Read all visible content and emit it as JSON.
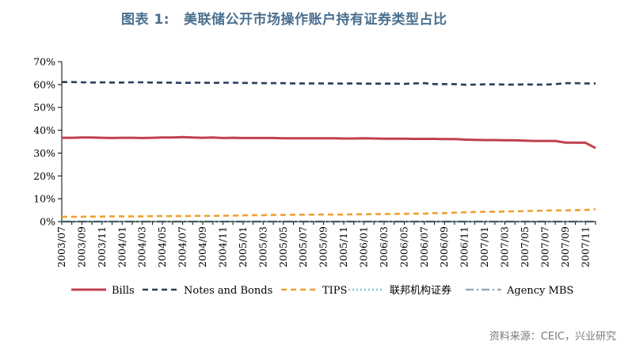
{
  "header": {
    "title_prefix": "图表 1:",
    "title_text": "美联储公开市场操作账户持有证券类型占比"
  },
  "footer": {
    "source": "资料来源：CEIC，兴业研究"
  },
  "chart_data": {
    "type": "line",
    "x": [
      "2003/07",
      "2003/08",
      "2003/09",
      "2003/10",
      "2003/11",
      "2003/12",
      "2004/01",
      "2004/02",
      "2004/03",
      "2004/04",
      "2004/05",
      "2004/06",
      "2004/07",
      "2004/08",
      "2004/09",
      "2004/10",
      "2004/11",
      "2004/12",
      "2005/01",
      "2005/02",
      "2005/03",
      "2005/04",
      "2005/05",
      "2005/06",
      "2005/07",
      "2005/08",
      "2005/09",
      "2005/10",
      "2005/11",
      "2005/12",
      "2006/01",
      "2006/02",
      "2006/03",
      "2006/04",
      "2006/05",
      "2006/06",
      "2006/07",
      "2006/08",
      "2006/09",
      "2006/10",
      "2006/11",
      "2006/12",
      "2007/01",
      "2007/02",
      "2007/03",
      "2007/04",
      "2007/05",
      "2007/06",
      "2007/07",
      "2007/08",
      "2007/09",
      "2007/10",
      "2007/11",
      "2007/12"
    ],
    "xticks": [
      "2003/07",
      "2003/09",
      "2003/11",
      "2004/01",
      "2004/03",
      "2004/05",
      "2004/07",
      "2004/09",
      "2004/11",
      "2005/01",
      "2005/03",
      "2005/05",
      "2005/07",
      "2005/09",
      "2005/11",
      "2006/01",
      "2006/03",
      "2006/05",
      "2006/07",
      "2006/09",
      "2006/11",
      "2007/01",
      "2007/03",
      "2007/05",
      "2007/07",
      "2007/09",
      "2007/11"
    ],
    "ylim": [
      0,
      70
    ],
    "yticks": [
      "0%",
      "10%",
      "20%",
      "30%",
      "40%",
      "50%",
      "60%",
      "70%"
    ],
    "legend_position": "bottom",
    "series": [
      {
        "name": "Bills",
        "color": "#c0404f",
        "style": "solid",
        "values": [
          36.7,
          36.7,
          36.8,
          36.8,
          36.7,
          36.6,
          36.7,
          36.7,
          36.6,
          36.7,
          36.8,
          36.8,
          37.0,
          36.8,
          36.7,
          36.8,
          36.6,
          36.7,
          36.6,
          36.6,
          36.6,
          36.6,
          36.5,
          36.5,
          36.5,
          36.5,
          36.5,
          36.5,
          36.4,
          36.4,
          36.5,
          36.4,
          36.3,
          36.3,
          36.3,
          36.2,
          36.2,
          36.2,
          36.1,
          36.1,
          35.9,
          35.8,
          35.7,
          35.7,
          35.6,
          35.6,
          35.4,
          35.3,
          35.3,
          35.3,
          34.6,
          34.6,
          34.5,
          32.2
        ]
      },
      {
        "name": "Notes and Bonds",
        "color": "#2a3d5c",
        "style": "dashed",
        "values": [
          61.1,
          61.1,
          61.0,
          60.9,
          61.0,
          60.9,
          60.9,
          61.0,
          61.0,
          60.9,
          60.9,
          60.8,
          60.7,
          60.8,
          60.8,
          60.7,
          60.8,
          60.8,
          60.7,
          60.7,
          60.6,
          60.6,
          60.6,
          60.5,
          60.5,
          60.5,
          60.5,
          60.5,
          60.4,
          60.5,
          60.4,
          60.4,
          60.4,
          60.4,
          60.3,
          60.5,
          60.6,
          60.2,
          60.2,
          60.2,
          59.9,
          60.0,
          60.1,
          60.1,
          60.0,
          60.0,
          60.1,
          60.0,
          60.0,
          60.2,
          60.6,
          60.6,
          60.5,
          60.5
        ]
      },
      {
        "name": "TIPS",
        "color": "#f0a030",
        "style": "dashed",
        "values": [
          2.1,
          2.1,
          2.1,
          2.2,
          2.2,
          2.3,
          2.3,
          2.3,
          2.3,
          2.4,
          2.4,
          2.4,
          2.4,
          2.5,
          2.5,
          2.5,
          2.6,
          2.6,
          2.7,
          2.8,
          2.8,
          2.9,
          2.9,
          3.0,
          3.0,
          3.0,
          3.1,
          3.1,
          3.1,
          3.2,
          3.2,
          3.3,
          3.3,
          3.4,
          3.4,
          3.5,
          3.5,
          3.7,
          3.7,
          3.9,
          4.1,
          4.2,
          4.3,
          4.3,
          4.4,
          4.5,
          4.6,
          4.7,
          4.8,
          4.9,
          4.9,
          5.0,
          5.1,
          5.4
        ]
      },
      {
        "name": "联邦机构证券",
        "color": "#7ec8e3",
        "style": "dotted",
        "values": [
          0,
          0,
          0,
          0,
          0,
          0,
          0,
          0,
          0,
          0,
          0,
          0,
          0,
          0,
          0,
          0,
          0,
          0,
          0,
          0,
          0,
          0,
          0,
          0,
          0,
          0,
          0,
          0,
          0,
          0,
          0,
          0,
          0,
          0,
          0,
          0,
          0,
          0,
          0,
          0,
          0,
          0,
          0,
          0,
          0,
          0,
          0,
          0,
          0,
          0,
          0,
          0,
          0,
          0
        ]
      },
      {
        "name": "Agency MBS",
        "color": "#9aa7b4",
        "style": "dashdot",
        "values": [
          0,
          0,
          0,
          0,
          0,
          0,
          0,
          0,
          0,
          0,
          0,
          0,
          0,
          0,
          0,
          0,
          0,
          0,
          0,
          0,
          0,
          0,
          0,
          0,
          0,
          0,
          0,
          0,
          0,
          0,
          0,
          0,
          0,
          0,
          0,
          0,
          0,
          0,
          0,
          0,
          0,
          0,
          0,
          0,
          0,
          0,
          0,
          0,
          0,
          0,
          0,
          0,
          0,
          0
        ]
      }
    ]
  }
}
